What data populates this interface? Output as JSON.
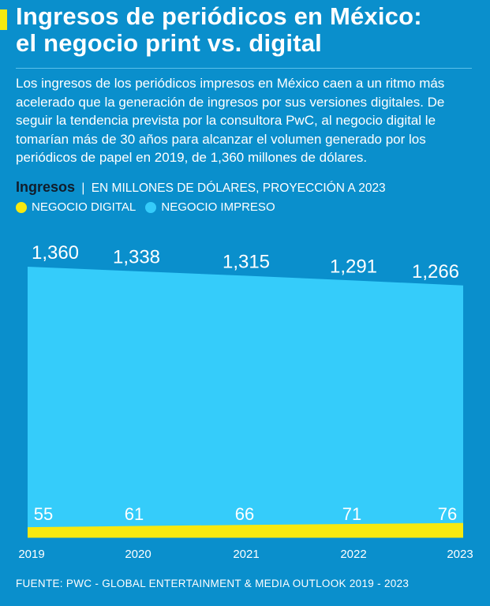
{
  "header": {
    "title_line1": "Ingresos de periódicos en México:",
    "title_line2": "el negocio print vs. digital"
  },
  "description": "Los ingresos de los periódicos impresos en México caen a un ritmo más acelerado que la generación de ingresos por sus versiones digitales. De seguir la tendencia prevista por la consultora PwC, al negocio digital le tomarían más de 30 años para alcanzar el volumen generado por los periódicos de papel en 2019, de 1,360 millones de dólares.",
  "subtitle": {
    "label": "Ingresos",
    "separator": "|",
    "unit": "EN MILLONES DE DÓLARES, PROYECCIÓN A 2023"
  },
  "legend": [
    {
      "label": "NEGOCIO DIGITAL",
      "color": "#f7e90f"
    },
    {
      "label": "NEGOCIO IMPRESO",
      "color": "#35ccfa"
    }
  ],
  "source": "FUENTE: PWC - GLOBAL ENTERTAINMENT & MEDIA OUTLOOK 2019 - 2023",
  "colors": {
    "background": "#0a8fcc",
    "accent": "#f7e90f",
    "print_area": "#35ccfa",
    "digital_area": "#f7e90f",
    "subtitle_strong": "#111d2b"
  },
  "chart_data": {
    "type": "area",
    "x": [
      "2019",
      "2020",
      "2021",
      "2022",
      "2023"
    ],
    "series": [
      {
        "name": "NEGOCIO IMPRESO",
        "values": [
          1360,
          1338,
          1315,
          1291,
          1266
        ],
        "labels": [
          "1,360",
          "1,338",
          "1,315",
          "1,291",
          "1,266"
        ]
      },
      {
        "name": "NEGOCIO DIGITAL",
        "values": [
          55,
          61,
          66,
          71,
          76
        ],
        "labels": [
          "55",
          "61",
          "66",
          "71",
          "76"
        ]
      }
    ],
    "ylim": [
      0,
      1360
    ],
    "grid": false,
    "legend_position": "top-left"
  }
}
